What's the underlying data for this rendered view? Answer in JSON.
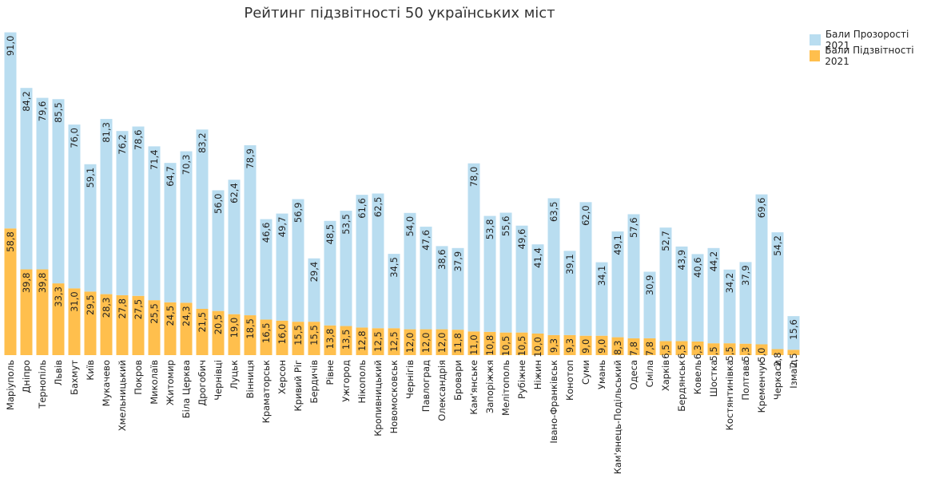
{
  "chart_data": {
    "type": "bar",
    "stacked": true,
    "title": "Рейтинг підзвітності 50 українських міст",
    "legend_position": "top-right",
    "grid": false,
    "ylim": [
      0,
      150
    ],
    "categories": [
      "Маріуполь",
      "Дніпро",
      "Тернопіль",
      "Львів",
      "Бахмут",
      "Київ",
      "Мукачево",
      "Хмельницький",
      "Покров",
      "Миколаїв",
      "Житомир",
      "Біла Церква",
      "Дрогобич",
      "Чернівці",
      "Луцьк",
      "Вінниця",
      "Краматорськ",
      "Херсон",
      "Кривий Ріг",
      "Бердичів",
      "Рівне",
      "Ужгород",
      "Нікополь",
      "Кропивницький",
      "Новомосковськ",
      "Чернігів",
      "Павлоград",
      "Олександрія",
      "Бровари",
      "Кам'янське",
      "Запоріжжя",
      "Мелітополь",
      "Рубіжне",
      "Ніжин",
      "Івано-Франківськ",
      "Конотоп",
      "Суми",
      "Умань",
      "Кам'янець-Подільський",
      "Одеса",
      "Сміла",
      "Харків",
      "Бердянськ",
      "Ковель",
      "Шостка",
      "Костянтинівка",
      "Полтава",
      "Кременчук",
      "Черкаси",
      "Ізмаїл"
    ],
    "series": [
      {
        "name": "Бали Підзвітності 2021",
        "color": "#FFBF4D",
        "values": [
          58.8,
          39.8,
          39.8,
          33.3,
          31.0,
          29.5,
          28.3,
          27.8,
          27.5,
          25.5,
          24.5,
          24.3,
          21.5,
          20.5,
          19.0,
          18.5,
          16.5,
          16.0,
          15.5,
          15.5,
          13.8,
          13.5,
          12.8,
          12.5,
          12.5,
          12.0,
          12.0,
          12.0,
          11.8,
          11.0,
          10.8,
          10.5,
          10.5,
          10.0,
          9.3,
          9.3,
          9.0,
          9.0,
          8.3,
          7.8,
          7.8,
          6.5,
          6.5,
          6.3,
          5.5,
          5.5,
          5.3,
          5.0,
          2.8,
          2.5
        ],
        "labels": [
          "58,8",
          "39,8",
          "39,8",
          "33,3",
          "31,0",
          "29,5",
          "28,3",
          "27,8",
          "27,5",
          "25,5",
          "24,5",
          "24,3",
          "21,5",
          "20,5",
          "19,0",
          "18,5",
          "16,5",
          "16,0",
          "15,5",
          "15,5",
          "13,8",
          "13,5",
          "12,8",
          "12,5",
          "12,5",
          "12,0",
          "12,0",
          "12,0",
          "11,8",
          "11,0",
          "10,8",
          "10,5",
          "10,5",
          "10,0",
          "9,3",
          "9,3",
          "9,0",
          "9,0",
          "8,3",
          "7,8",
          "7,8",
          "6,5",
          "6,5",
          "6,3",
          "5,5",
          "5,5",
          "5,3",
          "5,0",
          "2,8",
          "2,5"
        ]
      },
      {
        "name": "Бали Прозорості 2021",
        "color": "#B9DDF0",
        "values": [
          91.0,
          84.2,
          79.6,
          85.5,
          76.0,
          59.1,
          81.3,
          76.2,
          78.6,
          71.4,
          64.7,
          70.3,
          83.2,
          56.0,
          62.4,
          78.9,
          46.6,
          49.7,
          56.9,
          29.4,
          48.5,
          53.5,
          61.6,
          62.5,
          34.5,
          54.0,
          47.6,
          38.6,
          37.9,
          78.0,
          53.8,
          55.6,
          49.6,
          41.4,
          63.5,
          39.1,
          62.0,
          34.1,
          49.1,
          57.6,
          30.9,
          52.7,
          43.9,
          40.6,
          44.2,
          34.2,
          37.9,
          69.6,
          54.2,
          15.6
        ],
        "labels": [
          "91,0",
          "84,2",
          "79,6",
          "85,5",
          "76,0",
          "59,1",
          "81,3",
          "76,2",
          "78,6",
          "71,4",
          "64,7",
          "70,3",
          "83,2",
          "56,0",
          "62,4",
          "78,9",
          "46,6",
          "49,7",
          "56,9",
          "29,4",
          "48,5",
          "53,5",
          "61,6",
          "62,5",
          "34,5",
          "54,0",
          "47,6",
          "38,6",
          "37,9",
          "78,0",
          "53,8",
          "55,6",
          "49,6",
          "41,4",
          "63,5",
          "39,1",
          "62,0",
          "34,1",
          "49,1",
          "57,6",
          "30,9",
          "52,7",
          "43,9",
          "40,6",
          "44,2",
          "34,2",
          "37,9",
          "69,6",
          "54,2",
          "15,6"
        ]
      }
    ]
  }
}
